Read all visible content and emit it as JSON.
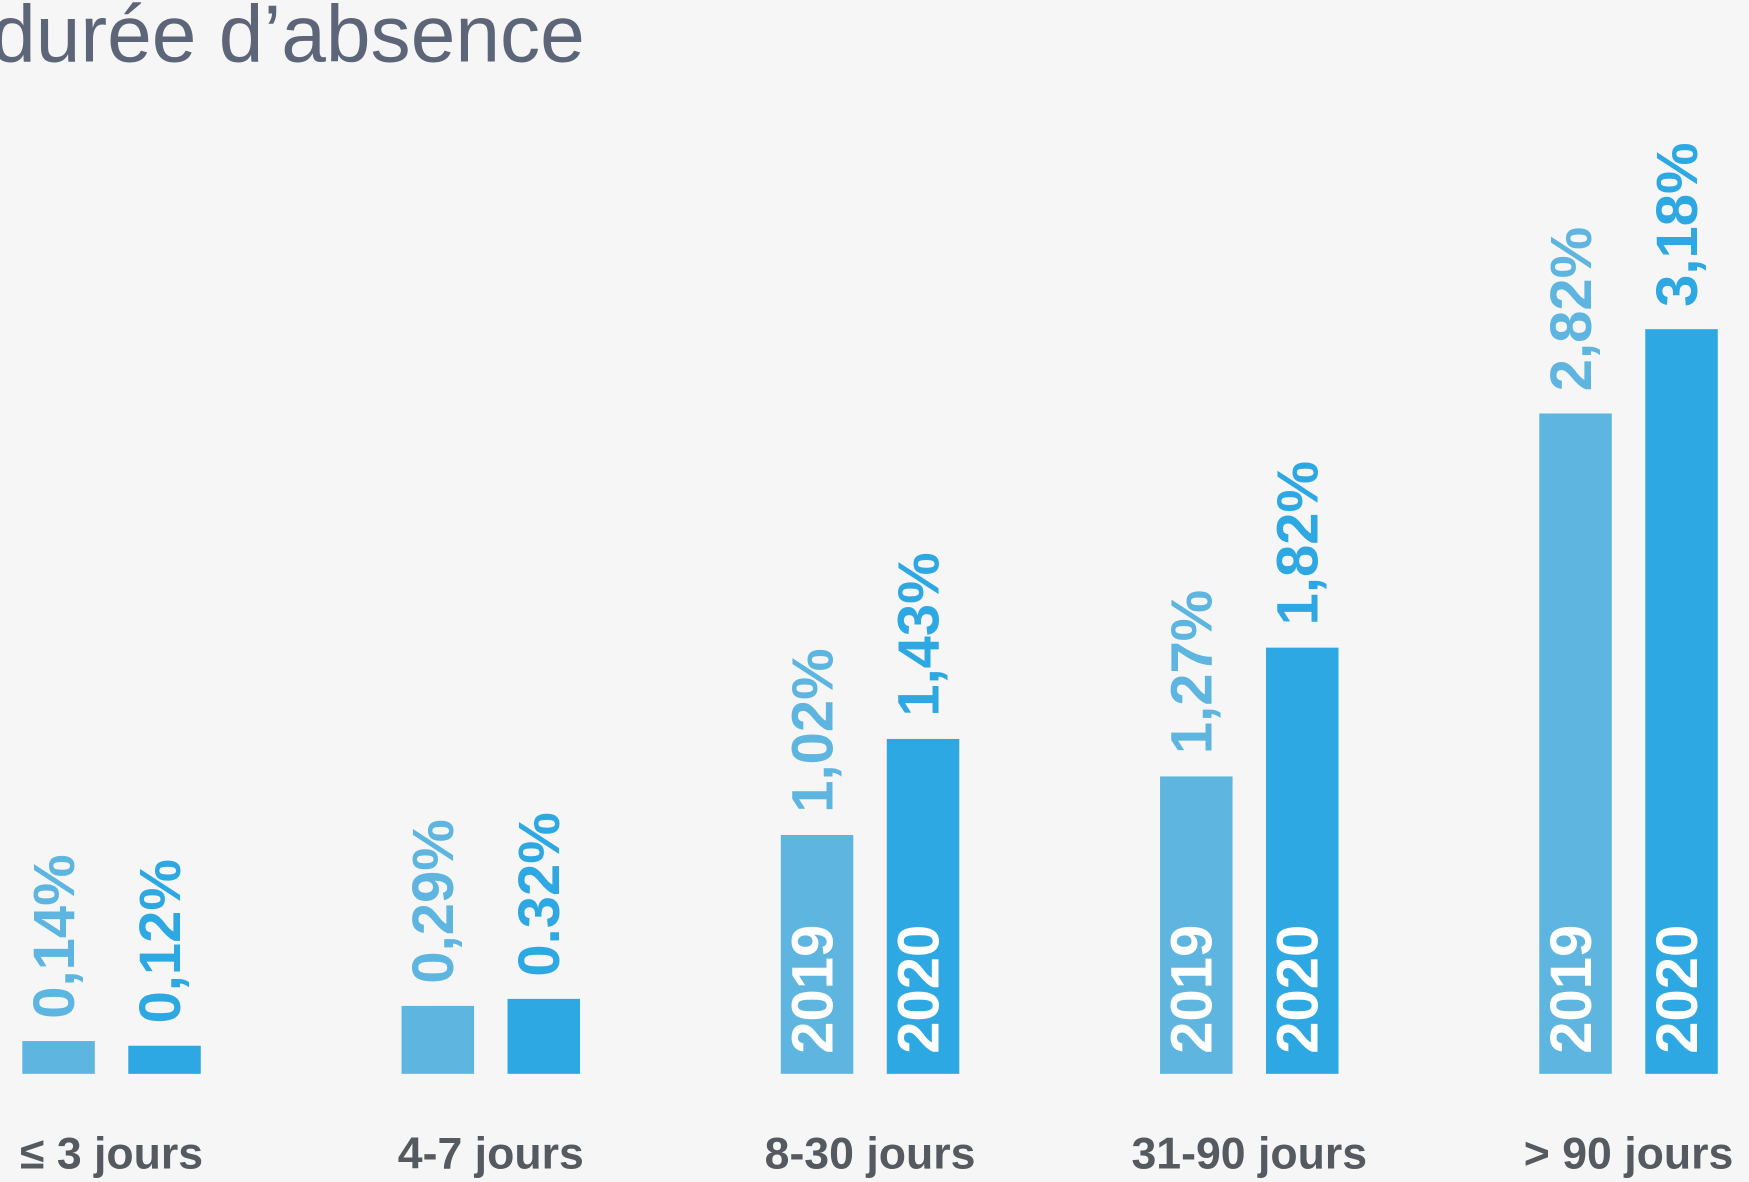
{
  "chart_data": {
    "type": "bar",
    "title": "durée d’absence",
    "categories": [
      "≤ 3 jours",
      "4-7 jours",
      "8-30 jours",
      "31-90 jours",
      "> 90 jours"
    ],
    "series": [
      {
        "name": "2019",
        "color": "#5db5e0",
        "values": [
          0.14,
          0.29,
          1.02,
          1.27,
          2.82
        ],
        "value_labels": [
          "0,14%",
          "0,29%",
          "1,02%",
          "1,27%",
          "2,82%"
        ]
      },
      {
        "name": "2020",
        "color": "#2ea8e2",
        "values": [
          0.12,
          0.32,
          1.43,
          1.82,
          3.18
        ],
        "value_labels": [
          "0,12%",
          "0.32%",
          "1,43%",
          "1,82%",
          "3,18%"
        ]
      }
    ]
  }
}
